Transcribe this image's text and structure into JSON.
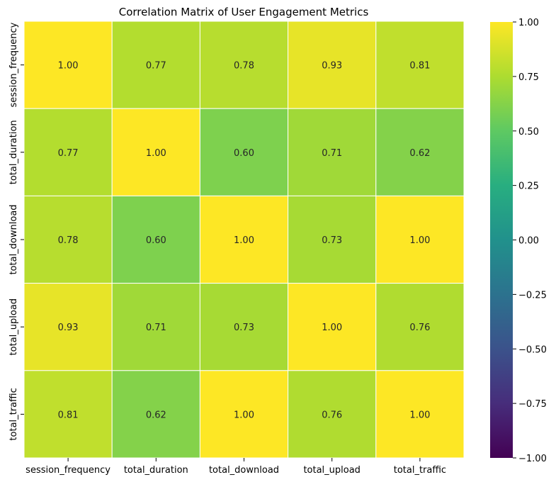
{
  "chart_data": {
    "type": "heatmap",
    "title": "Correlation Matrix of User Engagement Metrics",
    "xlabel": "",
    "ylabel": "",
    "categories": [
      "session_frequency",
      "total_duration",
      "total_download",
      "total_upload",
      "total_traffic"
    ],
    "matrix": [
      [
        1.0,
        0.77,
        0.78,
        0.93,
        0.81
      ],
      [
        0.77,
        1.0,
        0.6,
        0.71,
        0.62
      ],
      [
        0.78,
        0.6,
        1.0,
        0.73,
        1.0
      ],
      [
        0.93,
        0.71,
        0.73,
        1.0,
        0.76
      ],
      [
        0.81,
        0.62,
        1.0,
        0.76,
        1.0
      ]
    ],
    "annotations": [
      [
        "1.00",
        "0.77",
        "0.78",
        "0.93",
        "0.81"
      ],
      [
        "0.77",
        "1.00",
        "0.60",
        "0.71",
        "0.62"
      ],
      [
        "0.78",
        "0.60",
        "1.00",
        "0.73",
        "1.00"
      ],
      [
        "0.93",
        "0.71",
        "0.73",
        "1.00",
        "0.76"
      ],
      [
        "0.81",
        "0.62",
        "1.00",
        "0.76",
        "1.00"
      ]
    ],
    "colorbar": {
      "colormap": "viridis",
      "vmin": -1.0,
      "vmax": 1.0,
      "ticks": [
        1.0,
        0.75,
        0.5,
        0.25,
        0.0,
        -0.25,
        -0.5,
        -0.75,
        -1.0
      ],
      "tick_labels": [
        "1.00",
        "0.75",
        "0.50",
        "0.25",
        "0.00",
        "−0.25",
        "−0.50",
        "−0.75",
        "−1.00"
      ]
    },
    "grid": false,
    "legend": "colorbar-right"
  }
}
